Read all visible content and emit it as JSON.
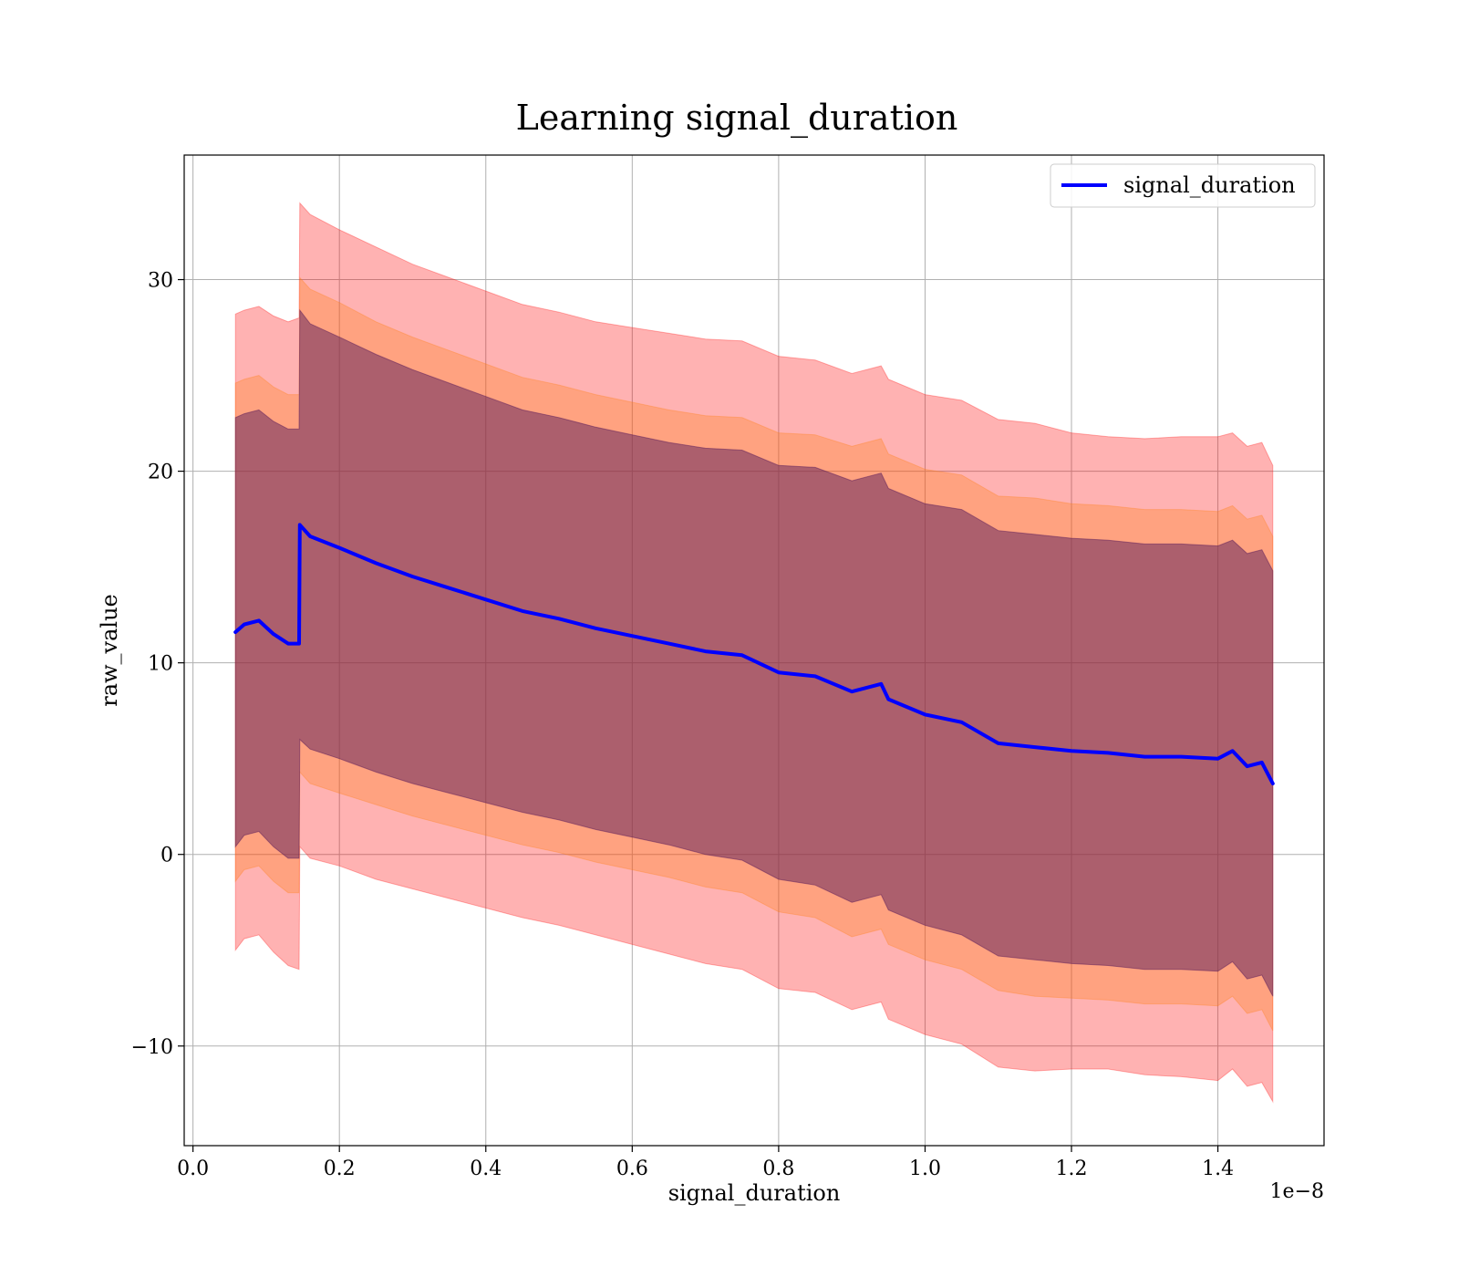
{
  "chart_data": {
    "type": "line",
    "title": "Learning signal_duration",
    "xlabel": "signal_duration",
    "ylabel": "raw_value",
    "x_offset_label": "1e−8",
    "xlim": [
      -0.012,
      1.545
    ],
    "ylim": [
      -15.2,
      36.5
    ],
    "x_ticks": [
      0.0,
      0.2,
      0.4,
      0.6,
      0.8,
      1.0,
      1.2,
      1.4
    ],
    "x_tick_labels": [
      "0.0",
      "0.2",
      "0.4",
      "0.6",
      "0.8",
      "1.0",
      "1.2",
      "1.4"
    ],
    "y_ticks": [
      -10,
      0,
      10,
      20,
      30
    ],
    "y_tick_labels": [
      "−10",
      "0",
      "10",
      "20",
      "30"
    ],
    "grid": true,
    "legend": {
      "position": "top-right",
      "entries": [
        "signal_duration"
      ]
    },
    "colors": {
      "line": "#0000ff",
      "band_outer": "#ff0000",
      "band_middle": "#ff7f0e",
      "band_inner": "#5a1b5a"
    },
    "series": [
      {
        "name": "signal_duration",
        "x": [
          0.058,
          0.07,
          0.09,
          0.11,
          0.13,
          0.145,
          0.146,
          0.16,
          0.2,
          0.25,
          0.3,
          0.35,
          0.4,
          0.45,
          0.5,
          0.55,
          0.6,
          0.65,
          0.7,
          0.75,
          0.8,
          0.85,
          0.9,
          0.94,
          0.95,
          1.0,
          1.05,
          1.1,
          1.15,
          1.2,
          1.25,
          1.3,
          1.35,
          1.4,
          1.42,
          1.44,
          1.46,
          1.475
        ],
        "y": [
          11.6,
          12.0,
          12.2,
          11.5,
          11.0,
          11.0,
          17.2,
          16.6,
          16.0,
          15.2,
          14.5,
          13.9,
          13.3,
          12.7,
          12.3,
          11.8,
          11.4,
          11.0,
          10.6,
          10.4,
          9.5,
          9.3,
          8.5,
          8.9,
          8.1,
          7.3,
          6.9,
          5.8,
          5.6,
          5.4,
          5.3,
          5.1,
          5.1,
          5.0,
          5.4,
          4.6,
          4.8,
          3.7
        ],
        "bands": [
          {
            "level": "outer",
            "half_width": [
              16.6,
              16.4,
              16.4,
              16.6,
              16.8,
              17.0,
              16.8,
              16.8,
              16.6,
              16.5,
              16.3,
              16.2,
              16.1,
              16.0,
              16.0,
              16.0,
              16.1,
              16.2,
              16.3,
              16.4,
              16.5,
              16.5,
              16.6,
              16.6,
              16.7,
              16.7,
              16.8,
              16.9,
              16.9,
              16.6,
              16.5,
              16.6,
              16.7,
              16.8,
              16.6,
              16.7,
              16.7,
              16.6
            ]
          },
          {
            "level": "middle",
            "half_width": [
              13.0,
              12.8,
              12.8,
              12.9,
              13.0,
              13.0,
              12.9,
              12.9,
              12.8,
              12.6,
              12.5,
              12.4,
              12.3,
              12.2,
              12.2,
              12.2,
              12.2,
              12.2,
              12.3,
              12.4,
              12.5,
              12.6,
              12.8,
              12.8,
              12.8,
              12.8,
              12.9,
              12.9,
              13.0,
              12.9,
              12.9,
              12.9,
              12.9,
              12.9,
              12.8,
              12.9,
              12.9,
              12.9
            ]
          },
          {
            "level": "inner",
            "half_width": [
              11.2,
              11.0,
              11.0,
              11.1,
              11.2,
              11.2,
              11.2,
              11.1,
              11.0,
              10.9,
              10.8,
              10.7,
              10.6,
              10.5,
              10.5,
              10.5,
              10.5,
              10.5,
              10.6,
              10.7,
              10.8,
              10.9,
              11.0,
              11.0,
              11.0,
              11.0,
              11.1,
              11.1,
              11.1,
              11.1,
              11.1,
              11.1,
              11.1,
              11.1,
              11.0,
              11.1,
              11.1,
              11.1
            ]
          }
        ]
      }
    ]
  }
}
